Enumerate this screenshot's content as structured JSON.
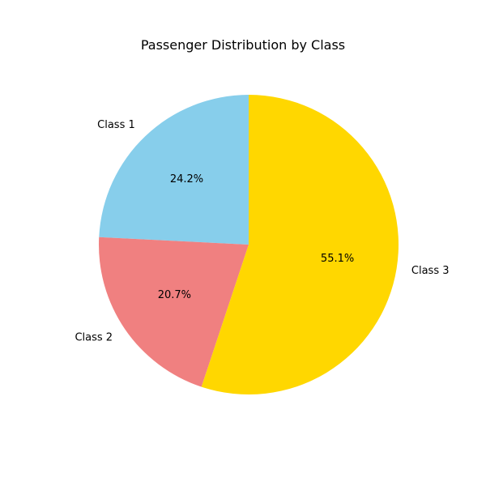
{
  "chart_data": {
    "type": "pie",
    "title": "Passenger Distribution by Class",
    "categories": [
      "Class 1",
      "Class 2",
      "Class 3"
    ],
    "values": [
      24.2,
      20.7,
      55.1
    ],
    "value_labels": [
      "24.2%",
      "20.7%",
      "55.1%"
    ],
    "colors": [
      "#87CEEB",
      "#F08080",
      "#FFD700"
    ],
    "start_angle_deg": 90,
    "direction": "counterclockwise",
    "legend": "none"
  }
}
